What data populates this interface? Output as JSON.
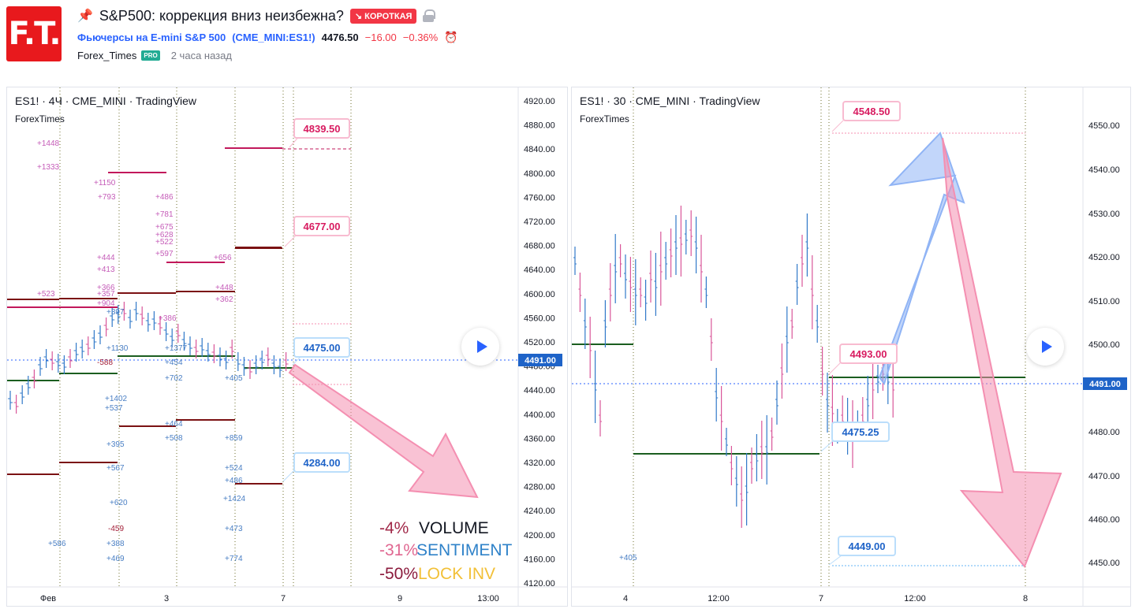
{
  "header": {
    "logo_text": "F.T.",
    "title": "S&P500: коррекция вниз неизбежна?",
    "badge": "↘ КОРОТКАЯ",
    "symbol_name": "Фьючерсы на E-mini S&P 500",
    "symbol_code": "(CME_MINI:ES1!)",
    "price": "4476.50",
    "change": "−16.00",
    "change_pct": "−0.36%",
    "author": "Forex_Times",
    "pro_badge": "PRO",
    "time_ago": "2 часа назад"
  },
  "chart_left": {
    "legend": "ES1! · 4Ч · CME_MINI · TradingView",
    "watermark": "ForexTimes",
    "price_axis": [
      "4920.00",
      "4880.00",
      "4840.00",
      "4800.00",
      "4760.00",
      "4720.00",
      "4680.00",
      "4640.00",
      "4600.00",
      "4560.00",
      "4520.00",
      "4480.00",
      "4440.00",
      "4400.00",
      "4360.00",
      "4320.00",
      "4280.00",
      "4240.00",
      "4200.00",
      "4160.00",
      "4120.00"
    ],
    "time_axis": [
      "Фев",
      "3",
      "7",
      "9",
      "13:00"
    ],
    "current_price": "4491.00",
    "callouts": {
      "top": "4839.50",
      "mid": "4677.00",
      "current": "4475.00",
      "low": "4284.00"
    },
    "volume_labels_pink": [
      "+1448",
      "+1333",
      "+1150",
      "+793",
      "+486",
      "+781",
      "+675",
      "+628",
      "+522",
      "+597",
      "+444",
      "+413",
      "+656",
      "+366",
      "+357",
      "+904",
      "+523",
      "+448",
      "+362",
      "+386"
    ],
    "volume_labels_blue": [
      "+397",
      "+1130",
      "+1377",
      "+454",
      "+702",
      "+405",
      "+1402",
      "+537",
      "+464",
      "+508",
      "+859",
      "+395",
      "+567",
      "+524",
      "+486",
      "+1424",
      "+620",
      "+473",
      "+586",
      "+388",
      "+469",
      "+774"
    ],
    "volume_labels_dark": [
      "-588",
      "-459"
    ],
    "legend_text": {
      "volume_pct": "-4%",
      "volume": "VOLUME",
      "sentiment_pct": "-31%",
      "sentiment": "SENTIMENT",
      "lockinv_pct": "-50%",
      "lockinv": "LOCK INV"
    },
    "colors": {
      "pink": "#e91e63",
      "blue": "#2962ff",
      "dark_red": "#7b1113",
      "green": "#1b5e20"
    }
  },
  "chart_right": {
    "legend": "ES1! · 30 · CME_MINI · TradingView",
    "watermark": "ForexTimes",
    "price_axis": [
      "4550.00",
      "4540.00",
      "4530.00",
      "4520.00",
      "4510.00",
      "4500.00",
      "4480.00",
      "4470.00",
      "4460.00",
      "4450.00"
    ],
    "time_axis": [
      "4",
      "12:00",
      "7",
      "12:00",
      "8"
    ],
    "current_price": "4491.00",
    "callouts": {
      "top": "4548.50",
      "mid": "4493.00",
      "low": "4475.25",
      "bottom": "4449.00"
    },
    "volume_label": "+405"
  }
}
